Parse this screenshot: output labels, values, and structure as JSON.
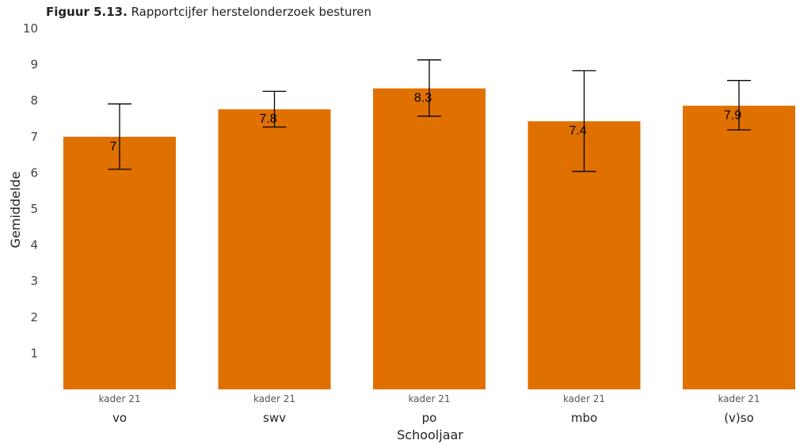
{
  "title": {
    "label": "Figuur 5.13.",
    "text": "Rapportcijfer herstelonderzoek besturen"
  },
  "chart_data": {
    "type": "bar",
    "categories": [
      "vo",
      "swv",
      "po",
      "mbo",
      "(v)so"
    ],
    "subcategories": [
      "kader 21",
      "kader 21",
      "kader 21",
      "kader 21",
      "kader 21"
    ],
    "values": [
      7.0,
      7.76,
      8.34,
      7.43,
      7.86
    ],
    "data_labels": [
      "7",
      "7.8",
      "8.3",
      "7.4",
      "7.9"
    ],
    "error_low": [
      6.1,
      7.27,
      7.57,
      6.04,
      7.19
    ],
    "error_high": [
      7.91,
      8.26,
      9.13,
      8.83,
      8.56
    ],
    "xlabel": "Schooljaar",
    "ylabel": "Gemiddelde",
    "ylim": [
      0,
      10
    ],
    "yticks": [
      1,
      2,
      3,
      4,
      5,
      6,
      7,
      8,
      9,
      10
    ],
    "grid": false,
    "bar_color": "#E07000"
  }
}
